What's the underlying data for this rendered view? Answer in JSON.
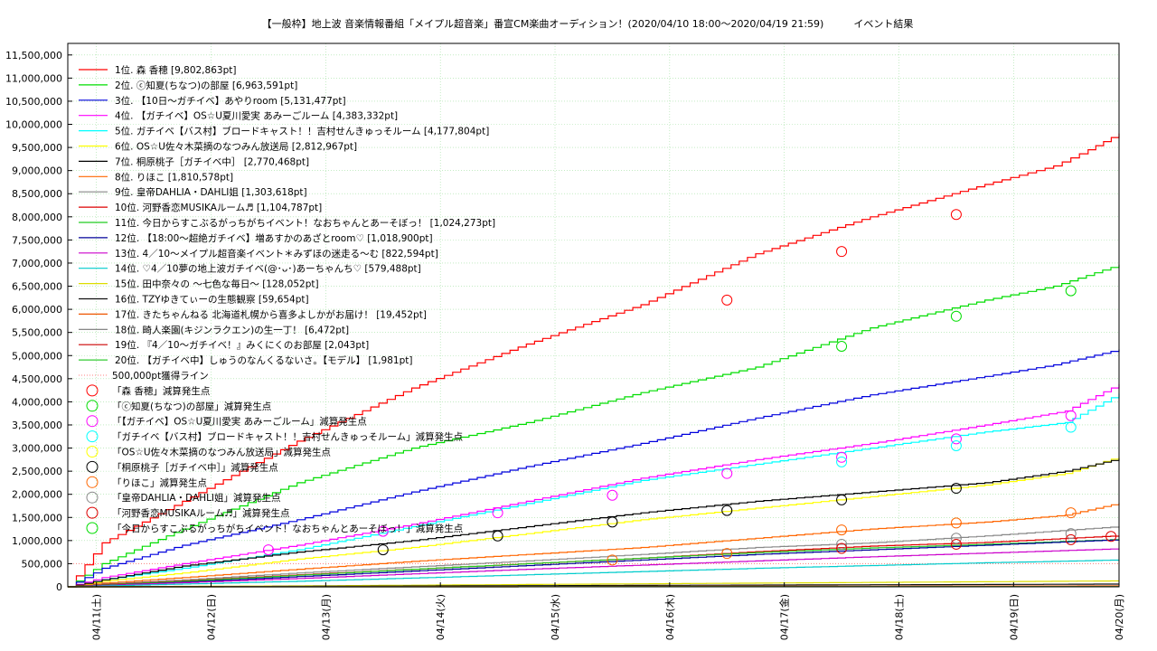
{
  "chart_data": {
    "type": "line",
    "title": "【一般枠】地上波 音楽情報番組「メイプル超音楽」番宣CM楽曲オーディション！(2020/04/10 18:00〜2020/04/19 21:59)　　　イベント結果",
    "xlabel": "",
    "ylabel": "",
    "ylim": [
      0,
      11750000
    ],
    "x_range_days": [
      0,
      9.17
    ],
    "x_ticks": [
      {
        "day": 0.25,
        "label": "04/11(土)"
      },
      {
        "day": 1.25,
        "label": "04/12(日)"
      },
      {
        "day": 2.25,
        "label": "04/13(月)"
      },
      {
        "day": 3.25,
        "label": "04/14(火)"
      },
      {
        "day": 4.25,
        "label": "04/15(水)"
      },
      {
        "day": 5.25,
        "label": "04/16(木)"
      },
      {
        "day": 6.25,
        "label": "04/17(金)"
      },
      {
        "day": 7.25,
        "label": "04/18(土)"
      },
      {
        "day": 8.25,
        "label": "04/19(日)"
      },
      {
        "day": 9.25,
        "label": "04/20(月)"
      }
    ],
    "y_ticks": [
      {
        "v": 0,
        "label": "0"
      },
      {
        "v": 500000,
        "label": "500,000"
      },
      {
        "v": 1000000,
        "label": "1,000,000"
      },
      {
        "v": 1500000,
        "label": "1,500,000"
      },
      {
        "v": 2000000,
        "label": "2,000,000"
      },
      {
        "v": 2500000,
        "label": "2,500,000"
      },
      {
        "v": 3000000,
        "label": "3,000,000"
      },
      {
        "v": 3500000,
        "label": "3,500,000"
      },
      {
        "v": 4000000,
        "label": "4,000,000"
      },
      {
        "v": 4500000,
        "label": "4,500,000"
      },
      {
        "v": 5000000,
        "label": "5,000,000"
      },
      {
        "v": 5500000,
        "label": "5,500,000"
      },
      {
        "v": 6000000,
        "label": "6,000,000"
      },
      {
        "v": 6500000,
        "label": "6,500,000"
      },
      {
        "v": 7000000,
        "label": "7,000,000"
      },
      {
        "v": 7500000,
        "label": "7,500,000"
      },
      {
        "v": 8000000,
        "label": "8,000,000"
      },
      {
        "v": 8500000,
        "label": "8,500,000"
      },
      {
        "v": 9000000,
        "label": "9,000,000"
      },
      {
        "v": 9500000,
        "label": "9,500,000"
      },
      {
        "v": 10000000,
        "label": "10,000,000"
      },
      {
        "v": 10500000,
        "label": "10,500,000"
      },
      {
        "v": 11000000,
        "label": "11,000,000"
      },
      {
        "v": 11500000,
        "label": "11,500,000"
      }
    ],
    "grid": true,
    "legend_position": "top-left",
    "threshold": {
      "name": "500,000pt獲得ライン",
      "value": 500000,
      "color": "#ff8080"
    },
    "series": [
      {
        "name": "1位. 森 香穂 [9,802,863pt]",
        "color": "#ff0000",
        "x": [
          0,
          0.3,
          1.0,
          2.0,
          3.0,
          4.0,
          5.0,
          6.0,
          7.0,
          8.0,
          8.6,
          8.9,
          9.17
        ],
        "y": [
          0,
          950000,
          1850000,
          3150000,
          4300000,
          5250000,
          6100000,
          7200000,
          8000000,
          8700000,
          9100000,
          9450000,
          9802863
        ],
        "markers": [
          {
            "x": 5.75,
            "y": 6200000
          },
          {
            "x": 6.75,
            "y": 7250000
          },
          {
            "x": 7.75,
            "y": 8050000
          }
        ]
      },
      {
        "name": "2位. ⓒ知夏(ちなつ)の部屋 [6,963,591pt]",
        "color": "#00dd00",
        "x": [
          0,
          0.3,
          1.0,
          2.0,
          3.0,
          4.0,
          5.0,
          6.0,
          7.0,
          8.0,
          8.6,
          9.17
        ],
        "y": [
          0,
          500000,
          1250000,
          2250000,
          3000000,
          3550000,
          4200000,
          4750000,
          5600000,
          6200000,
          6500000,
          6963591
        ],
        "markers": [
          {
            "x": 6.75,
            "y": 5200000
          },
          {
            "x": 7.75,
            "y": 5850000
          },
          {
            "x": 8.75,
            "y": 6400000
          }
        ]
      },
      {
        "name": "3位. 【10日〜ガチイベ】あやりroom [5,131,477pt]",
        "color": "#0000dd",
        "x": [
          0,
          0.3,
          1.0,
          2.0,
          3.0,
          4.0,
          5.0,
          6.0,
          7.0,
          8.0,
          8.6,
          9.17
        ],
        "y": [
          0,
          400000,
          900000,
          1450000,
          2050000,
          2600000,
          3100000,
          3650000,
          4150000,
          4550000,
          4800000,
          5131477
        ]
      },
      {
        "name": "4位. 【ガチイベ】OS☆U夏川愛実 あみーごルーム [4,383,332pt]",
        "color": "#ff00ff",
        "x": [
          0,
          0.3,
          1.0,
          2.0,
          3.0,
          4.0,
          5.0,
          6.0,
          7.0,
          8.0,
          8.7,
          9.17
        ],
        "y": [
          0,
          200000,
          500000,
          900000,
          1350000,
          1850000,
          2350000,
          2750000,
          3100000,
          3500000,
          3800000,
          4383332
        ],
        "markers": [
          {
            "x": 1.75,
            "y": 800000
          },
          {
            "x": 2.75,
            "y": 1200000
          },
          {
            "x": 3.75,
            "y": 1600000
          },
          {
            "x": 4.75,
            "y": 1980000
          },
          {
            "x": 5.75,
            "y": 2450000
          },
          {
            "x": 6.75,
            "y": 2800000
          },
          {
            "x": 7.75,
            "y": 3200000
          },
          {
            "x": 8.75,
            "y": 3700000
          }
        ]
      },
      {
        "name": "5位. ガチイベ【バス村】ブロードキャスト！！吉村せんきゅっそルーム [4,177,804pt]",
        "color": "#00ffff",
        "x": [
          0,
          0.3,
          1.0,
          2.0,
          3.0,
          4.0,
          5.0,
          6.0,
          7.0,
          8.0,
          8.7,
          9.17
        ],
        "y": [
          0,
          150000,
          400000,
          800000,
          1300000,
          1800000,
          2300000,
          2650000,
          3000000,
          3350000,
          3550000,
          4177804
        ],
        "markers": [
          {
            "x": 6.75,
            "y": 2700000
          },
          {
            "x": 7.75,
            "y": 3050000
          },
          {
            "x": 8.75,
            "y": 3450000
          }
        ]
      },
      {
        "name": "6位. OS☆U佐々木菜摘のなつみん放送局 [2,812,967pt]",
        "color": "#ffff00",
        "x": [
          0,
          0.3,
          1.0,
          2.0,
          3.0,
          4.0,
          5.0,
          6.0,
          7.0,
          8.0,
          8.7,
          9.17
        ],
        "y": [
          0,
          120000,
          300000,
          600000,
          850000,
          1150000,
          1450000,
          1700000,
          1950000,
          2200000,
          2450000,
          2812967
        ]
      },
      {
        "name": "7位. 桐原桃子［ガチイベ中］ [2,770,468pt]",
        "color": "#000000",
        "x": [
          0,
          0.3,
          1.0,
          2.0,
          3.0,
          4.0,
          5.0,
          6.0,
          7.0,
          8.0,
          8.7,
          9.17
        ],
        "y": [
          0,
          150000,
          450000,
          750000,
          1000000,
          1300000,
          1600000,
          1850000,
          2050000,
          2250000,
          2500000,
          2770468
        ],
        "markers": [
          {
            "x": 2.75,
            "y": 800000
          },
          {
            "x": 3.75,
            "y": 1100000
          },
          {
            "x": 4.75,
            "y": 1400000
          },
          {
            "x": 5.75,
            "y": 1650000
          },
          {
            "x": 6.75,
            "y": 1880000
          },
          {
            "x": 7.75,
            "y": 2130000
          }
        ]
      },
      {
        "name": "8位. りほこ [1,810,578pt]",
        "color": "#ff6600",
        "x": [
          0,
          0.3,
          1.0,
          2.0,
          3.0,
          4.0,
          5.0,
          6.0,
          7.0,
          8.0,
          8.7,
          9.17
        ],
        "y": [
          0,
          80000,
          200000,
          380000,
          550000,
          700000,
          850000,
          1050000,
          1250000,
          1400000,
          1550000,
          1810578
        ],
        "markers": [
          {
            "x": 4.75,
            "y": 580000
          },
          {
            "x": 5.75,
            "y": 720000
          },
          {
            "x": 6.75,
            "y": 1230000
          },
          {
            "x": 7.75,
            "y": 1380000
          },
          {
            "x": 8.75,
            "y": 1600000
          }
        ]
      },
      {
        "name": "9位. 皇帝DAHLIA・DAHLI姐 [1,303,618pt]",
        "color": "#888888",
        "x": [
          0,
          0.3,
          1.0,
          2.0,
          3.0,
          4.0,
          5.0,
          6.0,
          7.0,
          8.0,
          9.17
        ],
        "y": [
          0,
          60000,
          150000,
          300000,
          430000,
          560000,
          700000,
          850000,
          950000,
          1100000,
          1303618
        ],
        "markers": [
          {
            "x": 6.75,
            "y": 920000
          },
          {
            "x": 7.75,
            "y": 1050000
          },
          {
            "x": 8.75,
            "y": 1150000
          }
        ]
      },
      {
        "name": "10位. 河野香恋MUSIKAルーム♬ [1,104,787pt]",
        "color": "#dd0000",
        "x": [
          0,
          0.3,
          1.0,
          2.0,
          3.0,
          4.0,
          5.0,
          6.0,
          7.0,
          8.0,
          9.17
        ],
        "y": [
          0,
          50000,
          130000,
          260000,
          380000,
          500000,
          620000,
          760000,
          880000,
          960000,
          1104787
        ],
        "markers": [
          {
            "x": 6.75,
            "y": 830000
          },
          {
            "x": 7.75,
            "y": 920000
          },
          {
            "x": 8.75,
            "y": 1020000
          },
          {
            "x": 9.1,
            "y": 1090000
          }
        ]
      },
      {
        "name": "11位. 今日からすこぶるがっちがちイベント！なおちゃんとあーそぼっ！ [1,024,273pt]",
        "color": "#22cc22",
        "x": [
          0,
          0.3,
          1.0,
          2.0,
          3.0,
          4.0,
          5.0,
          6.0,
          7.0,
          8.0,
          9.17
        ],
        "y": [
          0,
          40000,
          120000,
          250000,
          380000,
          500000,
          620000,
          740000,
          840000,
          920000,
          1024273
        ]
      },
      {
        "name": "12位. 【18:00〜超絶ガチイベ】増あすかのあざとroom♡ [1,018,900pt]",
        "color": "#000099",
        "x": [
          0,
          0.3,
          1.0,
          2.0,
          3.0,
          4.0,
          5.0,
          6.0,
          7.0,
          8.0,
          9.17
        ],
        "y": [
          0,
          30000,
          100000,
          220000,
          340000,
          460000,
          580000,
          700000,
          800000,
          900000,
          1018900
        ]
      },
      {
        "name": "13位. 4／10〜メイプル超音楽イベント＊みずほの迷走る〜む [822,594pt]",
        "color": "#cc00cc",
        "x": [
          0,
          0.3,
          1.0,
          2.0,
          3.0,
          4.0,
          5.0,
          6.0,
          7.0,
          8.0,
          9.17
        ],
        "y": [
          0,
          30000,
          90000,
          180000,
          280000,
          380000,
          470000,
          560000,
          650000,
          730000,
          822594
        ]
      },
      {
        "name": "14位. ♡4／10夢の地上波ガチイベ(@･ᴗ･)あーちゃんち♡ [579,488pt]",
        "color": "#00cccc",
        "x": [
          0,
          0.3,
          1.0,
          2.0,
          3.0,
          4.0,
          5.0,
          6.0,
          7.0,
          8.0,
          9.17
        ],
        "y": [
          0,
          20000,
          60000,
          120000,
          190000,
          260000,
          330000,
          400000,
          460000,
          520000,
          579488
        ]
      },
      {
        "name": "15位. 田中奈々の 〜七色な毎日〜 [128,052pt]",
        "color": "#dddd00",
        "x": [
          0,
          1.0,
          2.0,
          3.0,
          4.0,
          5.0,
          6.0,
          7.0,
          8.0,
          9.17
        ],
        "y": [
          0,
          10000,
          20000,
          35000,
          50000,
          65000,
          80000,
          95000,
          110000,
          128052
        ]
      },
      {
        "name": "16位. TZYゆきてぃーの生態観察 [59,654pt]",
        "color": "#111111",
        "x": [
          0,
          2.0,
          4.0,
          6.0,
          8.0,
          9.17
        ],
        "y": [
          0,
          10000,
          25000,
          38000,
          50000,
          59654
        ]
      },
      {
        "name": "17位. きたちゃんねる 北海道札幌から喜多よしかがお届け！ [19,452pt]",
        "color": "#ee5500",
        "x": [
          0,
          3.0,
          6.0,
          9.17
        ],
        "y": [
          0,
          5000,
          12000,
          19452
        ]
      },
      {
        "name": "18位. 畸人楽園(キジンラクエン)の生一丁！ [6,472pt]",
        "color": "#777777",
        "x": [
          0,
          4.0,
          9.17
        ],
        "y": [
          0,
          3000,
          6472
        ]
      },
      {
        "name": "19位. 『4／10〜ガチイベ！』みくにくのお部屋 [2,043pt]",
        "color": "#cc0000",
        "x": [
          0,
          4.0,
          9.17
        ],
        "y": [
          0,
          1000,
          2043
        ]
      },
      {
        "name": "20位. 【ガチイベ中】しゅうのなんくるないさ。【モデル】 [1,981pt]",
        "color": "#33cc33",
        "x": [
          0,
          4.0,
          9.17
        ],
        "y": [
          0,
          1000,
          1981
        ]
      }
    ],
    "marker_legend": [
      {
        "name": "「森 香穂」減算発生点",
        "color": "#ff0000"
      },
      {
        "name": "「ⓒ知夏(ちなつ)の部屋」減算発生点",
        "color": "#00dd00"
      },
      {
        "name": "「【ガチイベ】OS☆U夏川愛実 あみーごルーム」減算発生点",
        "color": "#ff00ff"
      },
      {
        "name": "「ガチイベ【バス村】ブロードキャスト！！吉村せんきゅっそルーム」減算発生点",
        "color": "#00ffff"
      },
      {
        "name": "「OS☆U佐々木菜摘のなつみん放送局」減算発生点",
        "color": "#ffff00"
      },
      {
        "name": "「桐原桃子［ガチイベ中］」減算発生点",
        "color": "#000000"
      },
      {
        "name": "「りほこ」減算発生点",
        "color": "#ff6600"
      },
      {
        "name": "「皇帝DAHLIA・DAHLI姐」減算発生点",
        "color": "#888888"
      },
      {
        "name": "「河野香恋MUSIKAルーム♬」減算発生点",
        "color": "#dd0000"
      },
      {
        "name": "「今日からすこぶるがっちがちイベント！なおちゃんとあーそぼっ！」減算発生点",
        "color": "#00dd00"
      }
    ]
  }
}
